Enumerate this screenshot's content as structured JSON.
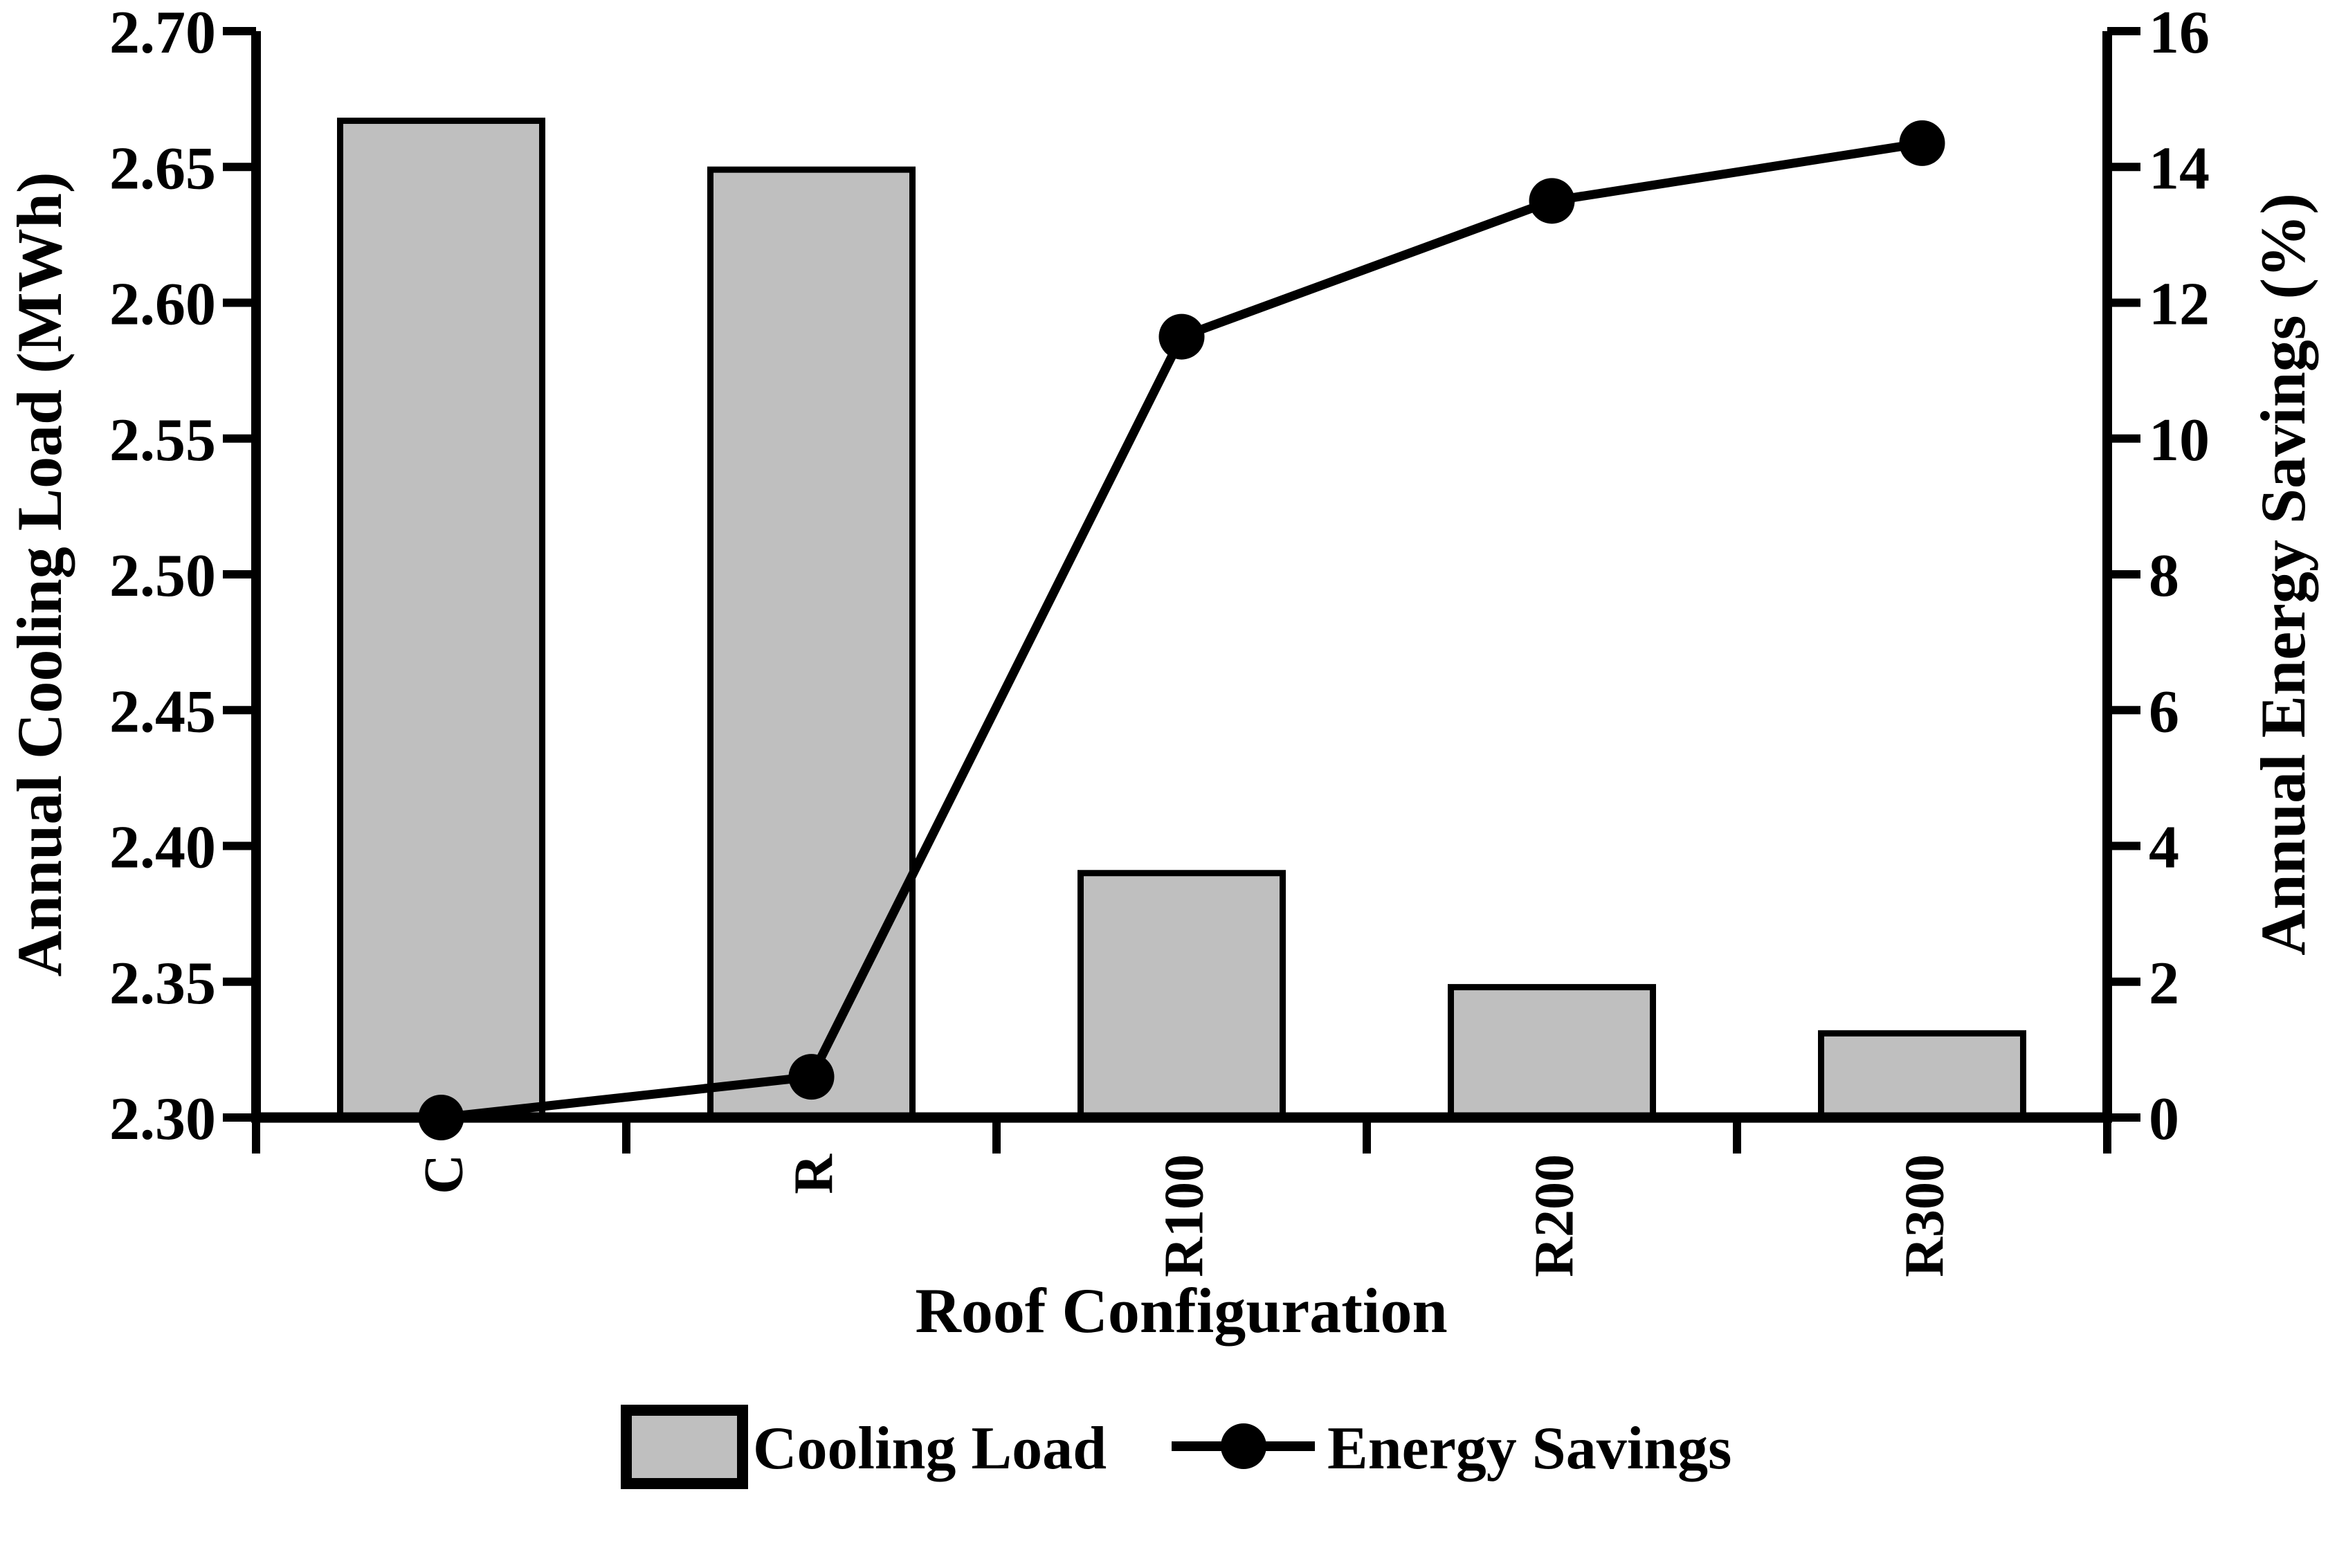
{
  "chart_data": {
    "type": "bar",
    "subtype": "combo-bar-line-dual-axis",
    "categories": [
      "C",
      "R",
      "R100",
      "R200",
      "R300"
    ],
    "series": [
      {
        "name": "Cooling Load",
        "type": "bar",
        "axis": "left",
        "values": [
          2.667,
          2.649,
          2.39,
          2.348,
          2.331
        ]
      },
      {
        "name": "Energy Savings",
        "type": "line",
        "axis": "right",
        "values": [
          0.0,
          0.6,
          11.5,
          13.5,
          14.35
        ]
      }
    ],
    "title": "",
    "xlabel": "Roof Configuration",
    "ylabel_left": "Annual Cooling Load (MWh)",
    "ylabel_right": "Annual Energy Savings (%)",
    "axis_left": {
      "min": 2.3,
      "max": 2.7,
      "step": 0.05,
      "tick_labels": [
        "2.70",
        "2.65",
        "2.60",
        "2.55",
        "2.50",
        "2.45",
        "2.40",
        "2.35",
        "2.30"
      ]
    },
    "axis_right": {
      "min": 0,
      "max": 16,
      "step": 2,
      "tick_labels": [
        "16",
        "14",
        "12",
        "10",
        "8",
        "6",
        "4",
        "2",
        "0"
      ]
    },
    "grid": false,
    "legend_position": "bottom-center",
    "colors": {
      "bar_fill": "#BFBFBF",
      "bar_border": "#000000",
      "line": "#000000",
      "marker": "#000000",
      "text": "#000000",
      "background": "#FFFFFF"
    }
  },
  "legend": {
    "cooling_load_label": "Cooling Load",
    "energy_savings_label": "Energy Savings"
  }
}
